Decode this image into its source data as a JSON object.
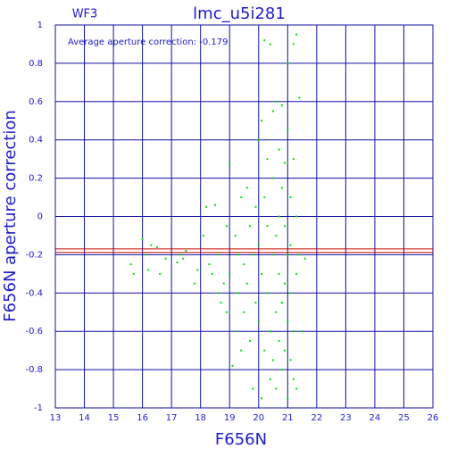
{
  "chart_data": {
    "type": "scatter",
    "title": "lmc_u5i281",
    "subtitle": "WF3",
    "annotation": "Average aperture correction: -0.179",
    "mean": -0.179,
    "xlabel": "F656N",
    "ylabel": "F656N aperture correction",
    "xlim": [
      13,
      26
    ],
    "ylim": [
      -1,
      1
    ],
    "xticks": [
      13,
      14,
      15,
      16,
      17,
      18,
      19,
      20,
      21,
      22,
      23,
      24,
      25,
      26
    ],
    "yticks": [
      -1,
      -0.8,
      -0.6,
      -0.4,
      -0.2,
      0,
      0.2,
      0.4,
      0.6,
      0.8,
      1
    ],
    "grid": true,
    "color": "#00e000",
    "mean_color": "#c00000",
    "x": [
      15.6,
      15.7,
      16.0,
      16.1,
      16.2,
      16.3,
      16.5,
      16.6,
      16.8,
      17.2,
      17.3,
      17.4,
      17.5,
      17.8,
      17.9,
      18.1,
      18.2,
      18.3,
      18.4,
      18.5,
      18.6,
      18.6,
      18.7,
      18.8,
      18.9,
      18.9,
      19.0,
      19.0,
      19.1,
      19.2,
      19.2,
      19.3,
      19.3,
      19.4,
      19.4,
      19.5,
      19.5,
      19.6,
      19.6,
      19.7,
      19.7,
      19.8,
      19.8,
      19.9,
      19.9,
      20.0,
      20.0,
      20.0,
      20.1,
      20.1,
      20.1,
      20.2,
      20.2,
      20.2,
      20.3,
      20.3,
      20.3,
      20.4,
      20.4,
      20.4,
      20.5,
      20.5,
      20.5,
      20.5,
      20.6,
      20.6,
      20.6,
      20.6,
      20.7,
      20.7,
      20.7,
      20.7,
      20.8,
      20.8,
      20.8,
      20.8,
      20.9,
      20.9,
      20.9,
      20.9,
      21.0,
      21.0,
      21.0,
      21.0,
      21.0,
      21.1,
      21.1,
      21.1,
      21.1,
      21.2,
      21.2,
      21.2,
      21.2,
      21.3,
      21.3,
      21.3,
      21.3,
      21.4,
      21.4,
      21.5,
      21.6
    ],
    "y": [
      -0.25,
      -0.3,
      -0.12,
      -0.2,
      -0.28,
      -0.15,
      -0.16,
      -0.3,
      -0.22,
      -0.24,
      -0.2,
      -0.22,
      -0.18,
      -0.35,
      -0.28,
      -0.1,
      0.05,
      -0.25,
      -0.3,
      0.06,
      -0.4,
      -0.2,
      -0.45,
      -0.35,
      -0.05,
      -0.5,
      0.27,
      -0.3,
      -0.78,
      -0.1,
      -0.6,
      -0.2,
      -0.4,
      0.1,
      -0.7,
      -0.25,
      -0.5,
      0.15,
      -0.35,
      -0.05,
      -0.65,
      -0.9,
      -0.2,
      0.05,
      -0.45,
      0.4,
      -0.15,
      -0.55,
      0.5,
      -0.95,
      -0.3,
      0.92,
      0.1,
      -0.7,
      0.3,
      -0.05,
      -0.4,
      0.9,
      -0.85,
      -0.6,
      0.55,
      0.2,
      -0.2,
      -0.75,
      0.6,
      -0.1,
      -0.5,
      -0.9,
      0.35,
      0.0,
      -0.3,
      -0.65,
      0.58,
      0.15,
      -0.45,
      -0.8,
      0.28,
      -0.05,
      -0.35,
      -0.7,
      0.8,
      0.45,
      -0.2,
      -0.55,
      -0.95,
      0.1,
      -0.15,
      -0.4,
      -0.75,
      0.9,
      0.3,
      -0.6,
      -0.85,
      0.95,
      0.0,
      -0.3,
      -0.9,
      0.62,
      -0.2,
      -0.6,
      -0.22
    ]
  }
}
